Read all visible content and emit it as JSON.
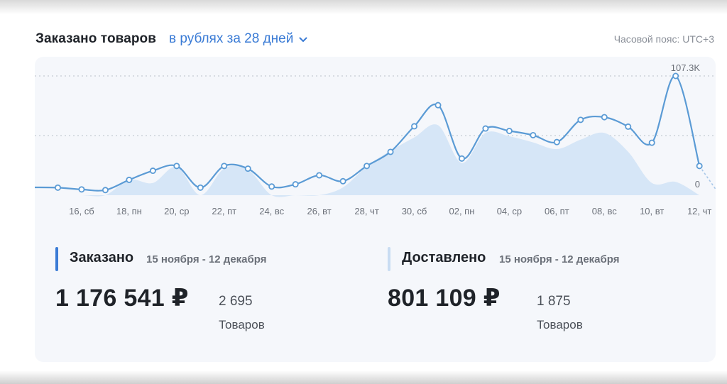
{
  "header": {
    "title": "Заказано товаров",
    "period_label": "в рублях за 28 дней",
    "timezone": "Часовой пояс: UTC+3"
  },
  "colors": {
    "accent": "#3a7bd5",
    "line": "#5b9bd5",
    "area": "#d6e6f7",
    "delivered_bar": "#c8dcf2",
    "card_bg": "#f5f7fb"
  },
  "chart_data": {
    "type": "line",
    "ylim": [
      0,
      107300
    ],
    "max_label": "107.3K",
    "min_label": "0",
    "x_tick_labels": [
      "16, сб",
      "18, пн",
      "20, ср",
      "22, пт",
      "24, вс",
      "26, вт",
      "28, чт",
      "30, сб",
      "02, пн",
      "04, ср",
      "06, пт",
      "08, вс",
      "10, вт",
      "12, чт"
    ],
    "series": [
      {
        "values": [
          7000,
          6800,
          5200,
          4600,
          13800,
          22000,
          26300,
          6800,
          26300,
          23900,
          7800,
          9800,
          17900,
          12600,
          26300,
          39000,
          62000,
          81000,
          33000,
          60000,
          57800,
          54000,
          47800,
          67800,
          70200,
          61700,
          47200,
          107300,
          26300
        ]
      },
      {
        "values": [
          0,
          0,
          0,
          0,
          14000,
          11000,
          25500,
          0,
          24000,
          23000,
          0,
          0,
          0,
          7000,
          26000,
          40000,
          52000,
          63000,
          29000,
          56000,
          53000,
          47500,
          41500,
          50000,
          56000,
          39000,
          11000,
          12000,
          0
        ]
      }
    ]
  },
  "ordered": {
    "title": "Заказано",
    "range": "15 ноября - 12 декабря",
    "amount": "1 176 541 ₽",
    "count": "2 695",
    "unit": "Товаров"
  },
  "delivered": {
    "title": "Доставлено",
    "range": "15 ноября - 12 декабря",
    "amount": "801 109 ₽",
    "count": "1 875",
    "unit": "Товаров"
  }
}
